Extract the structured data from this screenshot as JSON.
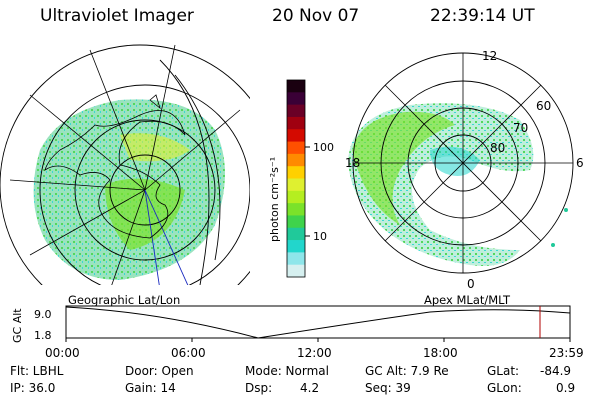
{
  "header": {
    "instrument": "Ultraviolet Imager",
    "date": "20 Nov 07",
    "time": "22:39:14 UT"
  },
  "left_panel": {
    "caption": "Geographic Lat/Lon"
  },
  "right_panel": {
    "caption": "Apex  MLat/MLT",
    "mlt_labels": [
      "12",
      "18",
      "6",
      "0"
    ],
    "mlat_labels": [
      "60",
      "70",
      "80"
    ]
  },
  "colorbar": {
    "unit_label": "photon cm⁻²s⁻¹",
    "ticks": [
      "100",
      "10"
    ],
    "colors": [
      "#1a0010",
      "#3a0036",
      "#6a0026",
      "#a00010",
      "#d40a00",
      "#ff5000",
      "#ff8a00",
      "#ffd000",
      "#dff030",
      "#b5ee20",
      "#7be22a",
      "#3fd34b",
      "#20c99a",
      "#22d6cc",
      "#8ee6ea",
      "#d6f0f0"
    ]
  },
  "timeline": {
    "y_axis_label": "GC Alt",
    "y_ticks": [
      "9.0",
      "1.8"
    ],
    "x_ticks": [
      "00:00",
      "06:00",
      "12:00",
      "18:00",
      "23:59"
    ],
    "marker_color": "#b00000"
  },
  "footer": {
    "filter": "Flt: LBHL",
    "ip": "IP: 36.0",
    "door": "Door: Open",
    "gain": "Gain: 14",
    "mode": "Mode: Normal",
    "dsp_label": "Dsp:",
    "dsp_value": "4.2",
    "gc_alt": "GC Alt: 7.9 Re",
    "seq": "Seq: 39",
    "glat_label": "GLat:",
    "glat_value": "-84.9",
    "glon_label": "GLon:",
    "glon_value": "0.9"
  }
}
